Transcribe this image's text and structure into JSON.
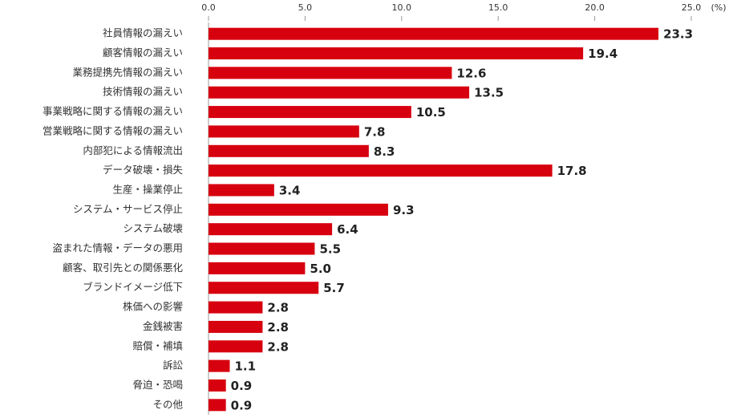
{
  "chart_data": {
    "type": "bar",
    "orientation": "horizontal",
    "xlabel": "(%)",
    "categories": [
      "社員情報の漏えい",
      "顧客情報の漏えい",
      "業務提携先情報の漏えい",
      "技術情報の漏えい",
      "事業戦略に関する情報の漏えい",
      "営業戦略に関する情報の漏えい",
      "内部犯による情報流出",
      "データ破壊・損失",
      "生産・操業停止",
      "システム・サービス停止",
      "システム破壊",
      "盗まれた情報・データの悪用",
      "顧客、取引先との関係悪化",
      "ブランドイメージ低下",
      "株価への影響",
      "金銭被害",
      "賠償・補填",
      "訴訟",
      "脅迫・恐喝",
      "その他"
    ],
    "values": [
      23.3,
      19.4,
      12.6,
      13.5,
      10.5,
      7.8,
      8.3,
      17.8,
      3.4,
      9.3,
      6.4,
      5.5,
      5.0,
      5.7,
      2.8,
      2.8,
      2.8,
      1.1,
      0.9,
      0.9
    ],
    "value_labels": [
      "23.3",
      "19.4",
      "12.6",
      "13.5",
      "10.5",
      "7.8",
      "8.3",
      "17.8",
      "3.4",
      "9.3",
      "6.4",
      "5.5",
      "5.0",
      "5.7",
      "2.8",
      "2.8",
      "2.8",
      "1.1",
      "0.9",
      "0.9"
    ],
    "color": "#d7000f",
    "xlim": [
      0,
      25
    ],
    "xticks": [
      {
        "value": 0,
        "label": "0.0"
      },
      {
        "value": 5,
        "label": "5.0"
      },
      {
        "value": 10,
        "label": "10.0"
      },
      {
        "value": 15,
        "label": "15.0"
      },
      {
        "value": 20,
        "label": "20.0"
      },
      {
        "value": 25,
        "label": "25.0"
      }
    ]
  }
}
